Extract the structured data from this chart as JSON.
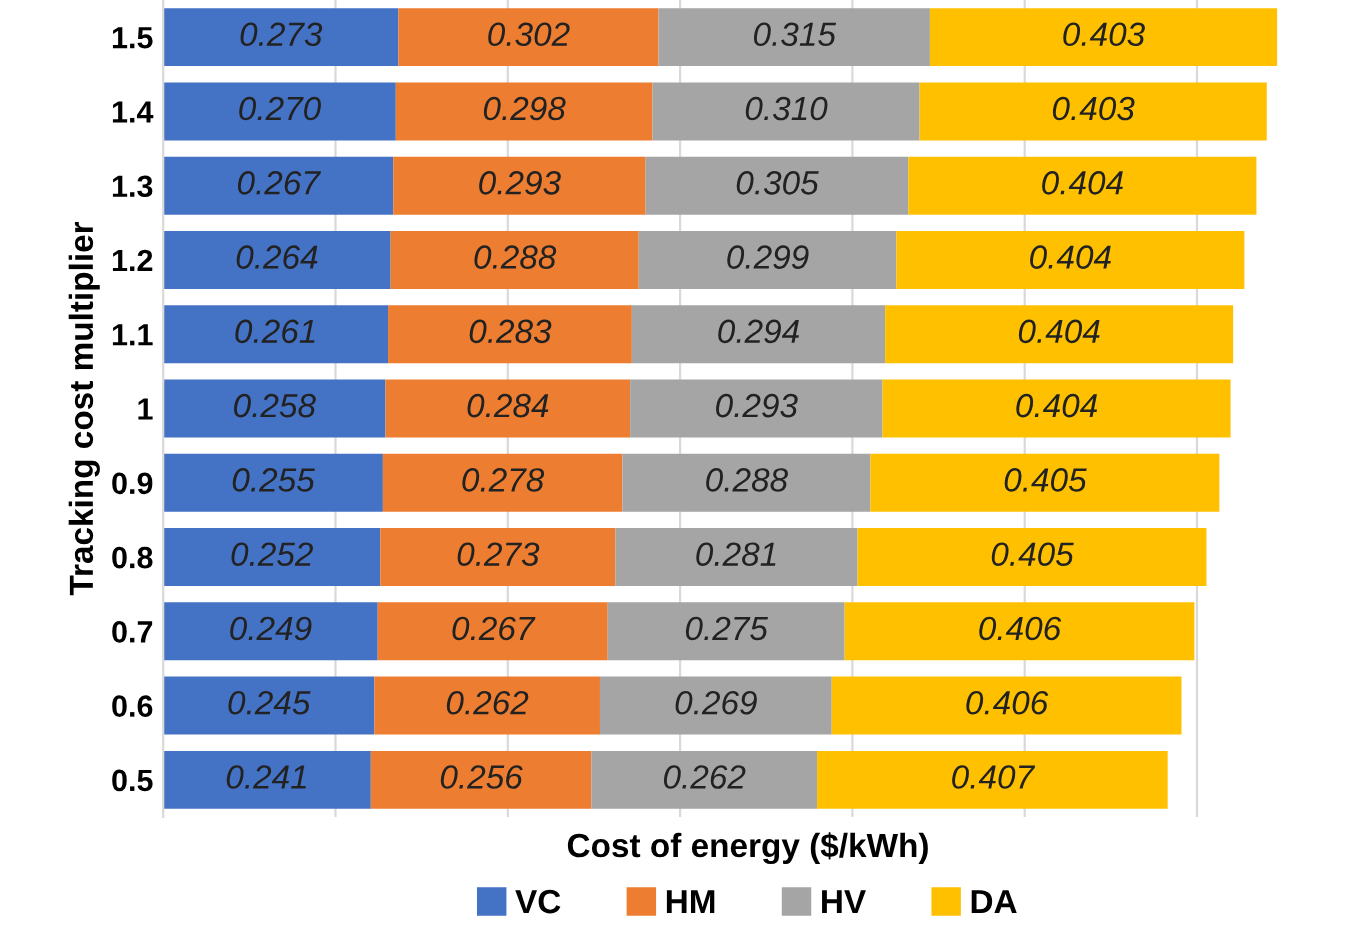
{
  "chart_data": {
    "type": "bar",
    "orientation": "horizontal",
    "stacked": true,
    "xlabel": "Cost of energy ($/kWh)",
    "ylabel": "Tracking cost multiplier",
    "categories": [
      "1.5",
      "1.4",
      "1.3",
      "1.2",
      "1.1",
      "1",
      "0.9",
      "0.8",
      "0.7",
      "0.6",
      "0.5"
    ],
    "series": [
      {
        "name": "VC",
        "color": "#4472c4",
        "values": [
          0.273,
          0.27,
          0.267,
          0.264,
          0.261,
          0.258,
          0.255,
          0.252,
          0.249,
          0.245,
          0.241
        ],
        "value_labels": [
          "0.273",
          "0.270",
          "0.267",
          "0.264",
          "0.261",
          "0.258",
          "0.255",
          "0.252",
          "0.249",
          "0.245",
          "0.241"
        ]
      },
      {
        "name": "HM",
        "color": "#ed7d31",
        "values": [
          0.302,
          0.298,
          0.293,
          0.288,
          0.283,
          0.284,
          0.278,
          0.273,
          0.267,
          0.262,
          0.256
        ],
        "value_labels": [
          "0.302",
          "0.298",
          "0.293",
          "0.288",
          "0.283",
          "0.284",
          "0.278",
          "0.273",
          "0.267",
          "0.262",
          "0.256"
        ]
      },
      {
        "name": "HV",
        "color": "#a5a5a5",
        "values": [
          0.315,
          0.31,
          0.305,
          0.299,
          0.294,
          0.293,
          0.288,
          0.281,
          0.275,
          0.269,
          0.262
        ],
        "value_labels": [
          "0.315",
          "0.310",
          "0.305",
          "0.299",
          "0.294",
          "0.293",
          "0.288",
          "0.281",
          "0.275",
          "0.269",
          "0.262"
        ]
      },
      {
        "name": "DA",
        "color": "#ffc000",
        "values": [
          0.403,
          0.403,
          0.404,
          0.404,
          0.404,
          0.404,
          0.405,
          0.405,
          0.406,
          0.406,
          0.407
        ],
        "value_labels": [
          "0.403",
          "0.403",
          "0.404",
          "0.404",
          "0.404",
          "0.404",
          "0.405",
          "0.405",
          "0.406",
          "0.406",
          "0.407"
        ]
      }
    ],
    "xticks": [
      {
        "value": 0.2,
        "label": null
      },
      {
        "value": 0.4,
        "label": null
      },
      {
        "value": 0.6,
        "label": null
      },
      {
        "value": 0.8,
        "label": null
      },
      {
        "value": 1.0,
        "label": null
      },
      {
        "value": 1.2,
        "label": null
      }
    ],
    "grid": "x",
    "legend": "bottom"
  }
}
